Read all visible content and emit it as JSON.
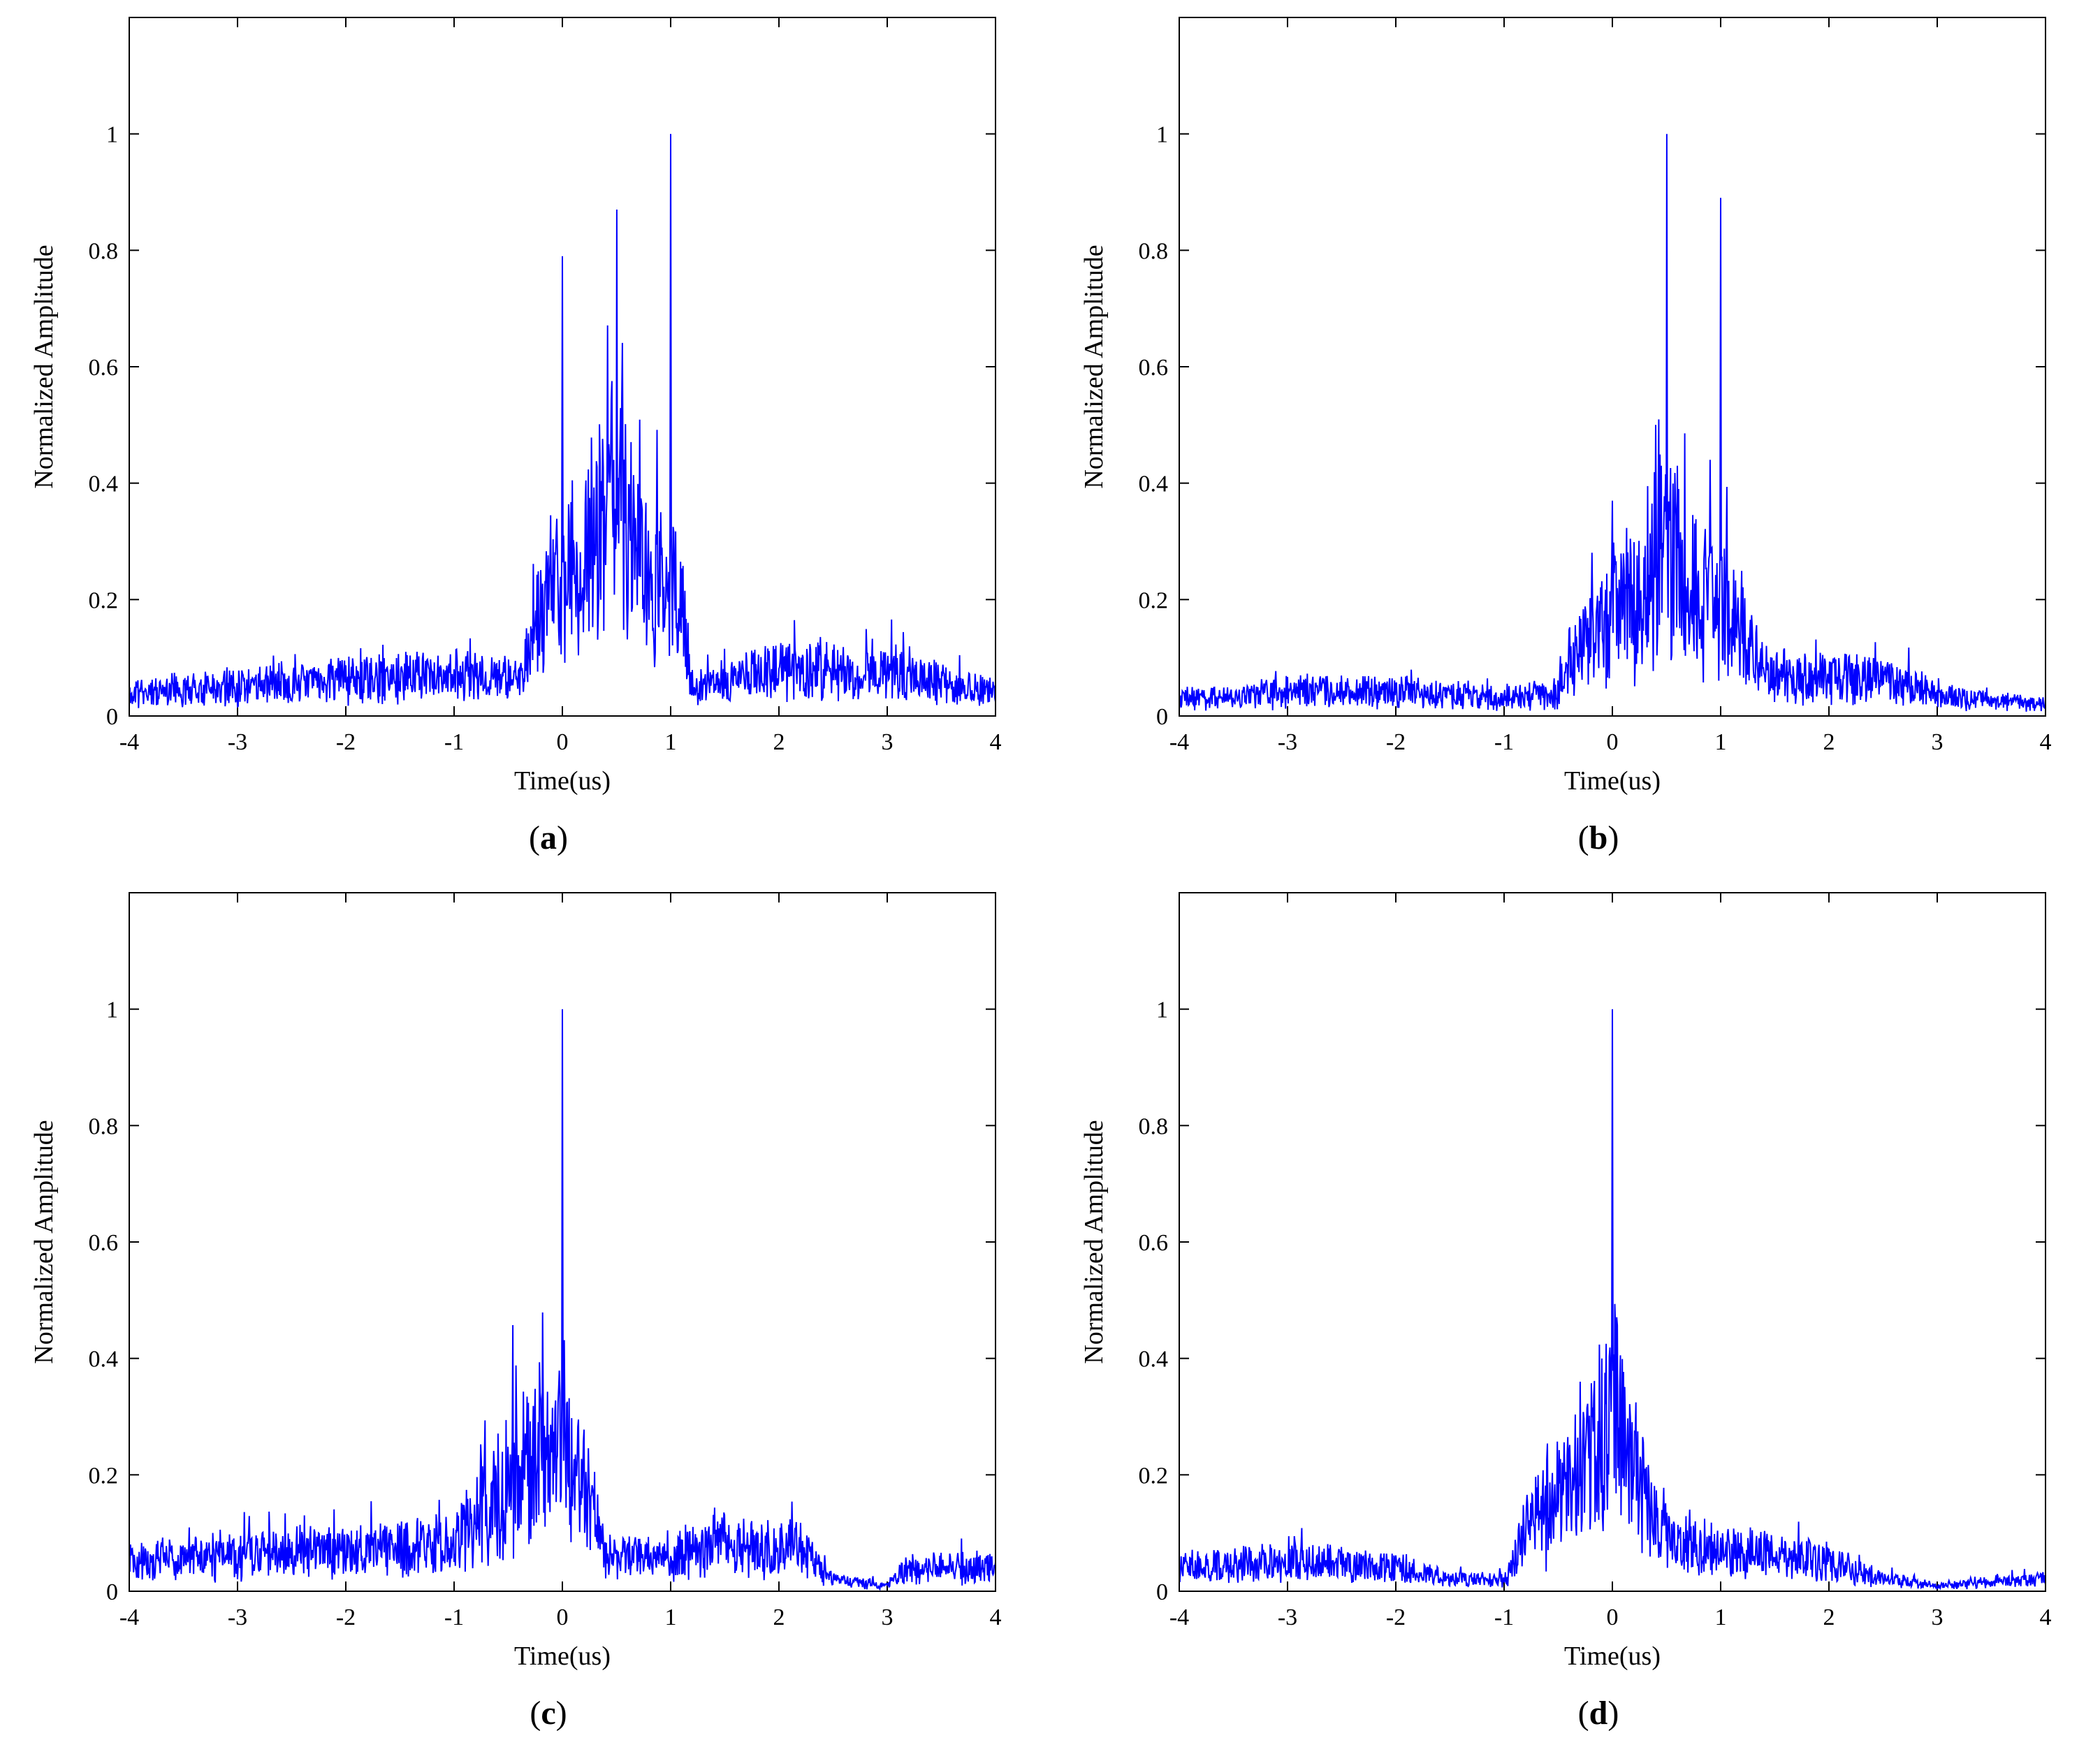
{
  "figure": {
    "panels": [
      {
        "id": "a",
        "caption_open": "(",
        "caption_letter": "a",
        "caption_close": ")"
      },
      {
        "id": "b",
        "caption_open": "(",
        "caption_letter": "b",
        "caption_close": ")"
      },
      {
        "id": "c",
        "caption_open": "(",
        "caption_letter": "c",
        "caption_close": ")"
      },
      {
        "id": "d",
        "caption_open": "(",
        "caption_letter": "d",
        "caption_close": ")"
      }
    ],
    "line_color": "#0000ff"
  },
  "chart_data": [
    {
      "id": "a",
      "type": "line",
      "title": "",
      "xlabel": "Time(us)",
      "ylabel": "Normalized Amplitude",
      "xlim": [
        -4,
        4
      ],
      "ylim": [
        0,
        1.2
      ],
      "xticks": [
        -4,
        -3,
        -2,
        -1,
        0,
        1,
        2,
        3,
        4
      ],
      "xtick_labels": [
        "-4",
        "-3",
        "-2",
        "-1",
        "0",
        "1",
        "2",
        "3",
        "4"
      ],
      "yticks": [
        0,
        0.2,
        0.4,
        0.6,
        0.8,
        1
      ],
      "ytick_labels": [
        "0",
        "0.2",
        "0.4",
        "0.6",
        "0.8",
        "1"
      ],
      "envelope": [
        [
          -4,
          0.04
        ],
        [
          -3.2,
          0.05
        ],
        [
          -2.2,
          0.06
        ],
        [
          -1.0,
          0.07
        ],
        [
          -0.4,
          0.06
        ],
        [
          -0.1,
          0.22
        ],
        [
          0.2,
          0.26
        ],
        [
          0.5,
          0.36
        ],
        [
          0.8,
          0.22
        ],
        [
          1.1,
          0.2
        ],
        [
          1.2,
          0.05
        ],
        [
          2.0,
          0.08
        ],
        [
          3.0,
          0.07
        ],
        [
          4,
          0.04
        ]
      ],
      "peaks": [
        [
          0.0,
          0.79
        ],
        [
          0.5,
          0.87
        ],
        [
          1.0,
          1.0
        ]
      ],
      "noise_amp": 0.55,
      "seed": 11
    },
    {
      "id": "b",
      "type": "line",
      "title": "",
      "xlabel": "Time(us)",
      "ylabel": "Normalized Amplitude",
      "xlim": [
        -4,
        4
      ],
      "ylim": [
        0,
        1.2
      ],
      "xticks": [
        -4,
        -3,
        -2,
        -1,
        0,
        1,
        2,
        3,
        4
      ],
      "xtick_labels": [
        "-4",
        "-3",
        "-2",
        "-1",
        "0",
        "1",
        "2",
        "3",
        "4"
      ],
      "yticks": [
        0,
        0.2,
        0.4,
        0.6,
        0.8,
        1
      ],
      "ytick_labels": [
        "0",
        "0.2",
        "0.4",
        "0.6",
        "0.8",
        "1"
      ],
      "envelope": [
        [
          -4,
          0.03
        ],
        [
          -3,
          0.04
        ],
        [
          -2,
          0.04
        ],
        [
          -1,
          0.03
        ],
        [
          -0.5,
          0.04
        ],
        [
          -0.2,
          0.14
        ],
        [
          0.2,
          0.2
        ],
        [
          0.5,
          0.28
        ],
        [
          0.8,
          0.22
        ],
        [
          1.2,
          0.14
        ],
        [
          1.4,
          0.07
        ],
        [
          2.5,
          0.06
        ],
        [
          3.2,
          0.03
        ],
        [
          4,
          0.02
        ]
      ],
      "peaks": [
        [
          0.0,
          0.37
        ],
        [
          0.4,
          0.5
        ],
        [
          0.5,
          1.0
        ],
        [
          0.6,
          0.43
        ],
        [
          0.9,
          0.44
        ],
        [
          1.0,
          0.89
        ]
      ],
      "noise_amp": 0.6,
      "seed": 23
    },
    {
      "id": "c",
      "type": "line",
      "title": "",
      "xlabel": "Time(us)",
      "ylabel": "Normalized Amplitude",
      "xlim": [
        -4,
        4
      ],
      "ylim": [
        0,
        1.2
      ],
      "xticks": [
        -4,
        -3,
        -2,
        -1,
        0,
        1,
        2,
        3,
        4
      ],
      "xtick_labels": [
        "-4",
        "-3",
        "-2",
        "-1",
        "0",
        "1",
        "2",
        "3",
        "4"
      ],
      "yticks": [
        0,
        0.2,
        0.4,
        0.6,
        0.8,
        1
      ],
      "ytick_labels": [
        "0",
        "0.2",
        "0.4",
        "0.6",
        "0.8",
        "1"
      ],
      "envelope": [
        [
          -4,
          0.05
        ],
        [
          -3,
          0.06
        ],
        [
          -2,
          0.07
        ],
        [
          -1,
          0.08
        ],
        [
          -0.7,
          0.14
        ],
        [
          -0.3,
          0.22
        ],
        [
          0.0,
          0.26
        ],
        [
          0.2,
          0.18
        ],
        [
          0.4,
          0.06
        ],
        [
          1.0,
          0.06
        ],
        [
          1.5,
          0.08
        ],
        [
          2.2,
          0.07
        ],
        [
          2.5,
          0.02
        ],
        [
          3.0,
          0.01
        ],
        [
          3.2,
          0.04
        ],
        [
          4,
          0.04
        ]
      ],
      "peaks": [
        [
          -0.2,
          0.33
        ],
        [
          0.0,
          1.0
        ]
      ],
      "noise_amp": 0.6,
      "seed": 37
    },
    {
      "id": "d",
      "type": "line",
      "title": "",
      "xlabel": "Time(us)",
      "ylabel": "Normalized Amplitude",
      "xlim": [
        -4,
        4
      ],
      "ylim": [
        0,
        1.2
      ],
      "xticks": [
        -4,
        -3,
        -2,
        -1,
        0,
        1,
        2,
        3,
        4
      ],
      "xtick_labels": [
        "-4",
        "-3",
        "-2",
        "-1",
        "0",
        "1",
        "2",
        "3",
        "4"
      ],
      "yticks": [
        0,
        0.2,
        0.4,
        0.6,
        0.8,
        1
      ],
      "ytick_labels": [
        "0",
        "0.2",
        "0.4",
        "0.6",
        "0.8",
        "1"
      ],
      "envelope": [
        [
          -4,
          0.04
        ],
        [
          -3,
          0.05
        ],
        [
          -2,
          0.04
        ],
        [
          -1.5,
          0.02
        ],
        [
          -1.0,
          0.02
        ],
        [
          -0.8,
          0.1
        ],
        [
          -0.3,
          0.2
        ],
        [
          0.0,
          0.3
        ],
        [
          0.3,
          0.15
        ],
        [
          0.6,
          0.08
        ],
        [
          1.0,
          0.07
        ],
        [
          2.0,
          0.05
        ],
        [
          2.5,
          0.02
        ],
        [
          3.0,
          0.01
        ],
        [
          4,
          0.02
        ]
      ],
      "peaks": [
        [
          -0.3,
          0.36
        ],
        [
          -0.1,
          0.4
        ],
        [
          0.0,
          1.0
        ]
      ],
      "noise_amp": 0.6,
      "seed": 51
    }
  ]
}
